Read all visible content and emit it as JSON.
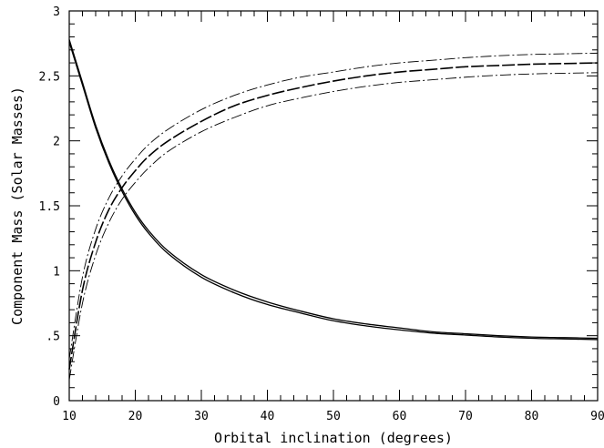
{
  "chart_data": {
    "type": "line",
    "xlabel": "Orbital inclination (degrees)",
    "ylabel": "Component Mass (Solar Masses)",
    "xlim": [
      10,
      90
    ],
    "ylim": [
      0,
      3
    ],
    "grid": false,
    "x_ticks": [
      10,
      20,
      30,
      40,
      50,
      60,
      70,
      80,
      90
    ],
    "x_tick_labels": [
      "10",
      "20",
      "30",
      "40",
      "50",
      "60",
      "70",
      "80",
      "90"
    ],
    "y_ticks": [
      0,
      0.5,
      1,
      1.5,
      2,
      2.5,
      3
    ],
    "y_tick_labels": [
      "0",
      ".5",
      "1",
      "1.5",
      "2",
      "2.5",
      "3"
    ],
    "x": [
      10,
      12,
      14,
      16,
      18,
      20,
      22,
      25,
      30,
      35,
      40,
      45,
      50,
      55,
      60,
      65,
      70,
      75,
      80,
      85,
      90
    ],
    "series": [
      {
        "style": "solid",
        "values": [
          2.78,
          2.45,
          2.12,
          1.85,
          1.63,
          1.45,
          1.31,
          1.15,
          0.97,
          0.85,
          0.76,
          0.69,
          0.63,
          0.59,
          0.56,
          0.53,
          0.515,
          0.5,
          0.49,
          0.485,
          0.48
        ]
      },
      {
        "style": "solid",
        "values": [
          2.76,
          2.43,
          2.1,
          1.83,
          1.61,
          1.43,
          1.29,
          1.13,
          0.95,
          0.83,
          0.74,
          0.675,
          0.615,
          0.575,
          0.545,
          0.52,
          0.505,
          0.49,
          0.48,
          0.475,
          0.47
        ]
      },
      {
        "style": "dashed",
        "values": [
          0.24,
          0.85,
          1.22,
          1.47,
          1.64,
          1.77,
          1.88,
          2.0,
          2.15,
          2.27,
          2.35,
          2.41,
          2.46,
          2.5,
          2.53,
          2.55,
          2.57,
          2.58,
          2.59,
          2.595,
          2.6
        ]
      },
      {
        "style": "dash-dot",
        "values": [
          0.32,
          0.95,
          1.32,
          1.56,
          1.73,
          1.86,
          1.97,
          2.09,
          2.24,
          2.35,
          2.43,
          2.49,
          2.53,
          2.57,
          2.6,
          2.62,
          2.64,
          2.655,
          2.665,
          2.67,
          2.675
        ]
      },
      {
        "style": "dash-dot",
        "values": [
          0.16,
          0.75,
          1.12,
          1.37,
          1.55,
          1.68,
          1.79,
          1.92,
          2.07,
          2.18,
          2.27,
          2.33,
          2.38,
          2.42,
          2.45,
          2.47,
          2.49,
          2.505,
          2.515,
          2.52,
          2.525
        ]
      }
    ]
  }
}
